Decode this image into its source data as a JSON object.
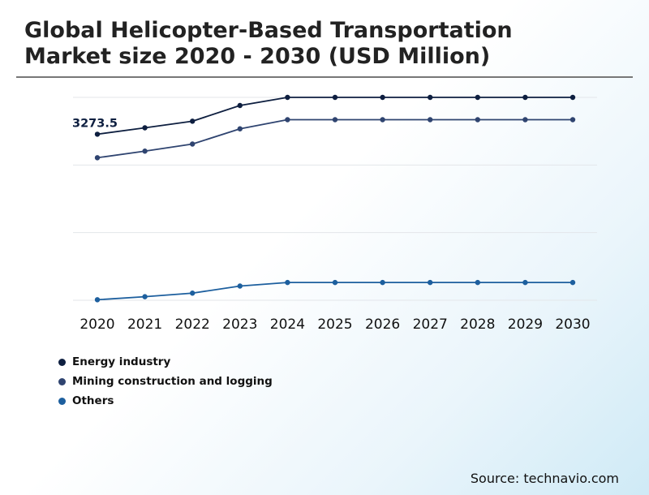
{
  "title": "Global Helicopter-Based Transportation Market size 2020 - 2030 (USD Million)",
  "source": "Source: technavio.com",
  "colors": {
    "energy": "#0e1f40",
    "mining": "#2f4470",
    "others": "#1d5f9e",
    "grid": "#e3e6ea",
    "rule": "#777777"
  },
  "chart_data": {
    "type": "line",
    "categories": [
      "2020",
      "2021",
      "2022",
      "2023",
      "2024",
      "2025",
      "2026",
      "2027",
      "2028",
      "2029",
      "2030"
    ],
    "series": [
      {
        "name": "Energy industry",
        "color": "#0e1f40",
        "values": [
          3273.5,
          3400,
          3530,
          3840,
          4000,
          4000,
          4000,
          4000,
          4000,
          4000,
          4000
        ]
      },
      {
        "name": "Mining construction and logging",
        "color": "#2f4470",
        "values": [
          2810,
          2940,
          3080,
          3380,
          3560,
          3560,
          3560,
          3560,
          3560,
          3560,
          3560
        ]
      },
      {
        "name": "Others",
        "color": "#1d5f9e",
        "values": [
          10,
          70,
          140,
          280,
          350,
          350,
          350,
          350,
          350,
          350,
          350
        ]
      }
    ],
    "annotations": [
      {
        "series": 0,
        "index": 0,
        "label": "3273.5"
      }
    ],
    "ylim": [
      0,
      4000
    ],
    "grid": true,
    "legend": "bottom-left"
  }
}
